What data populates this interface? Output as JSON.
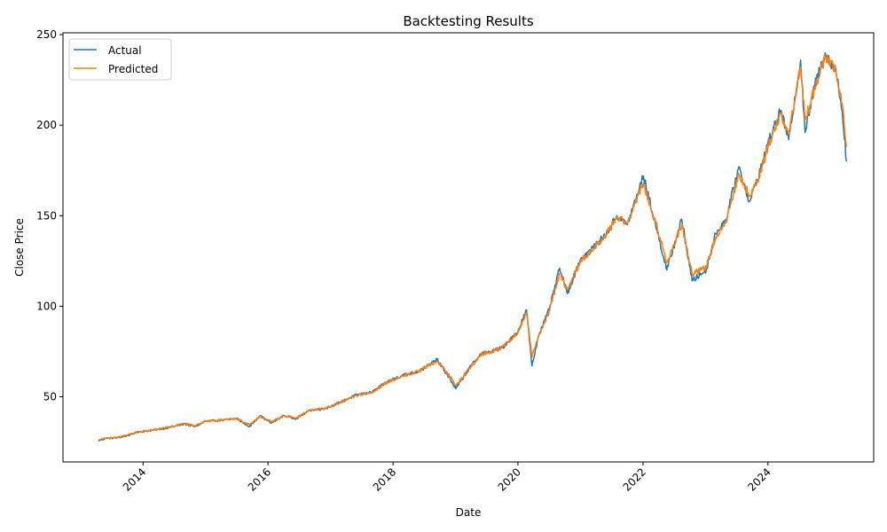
{
  "chart_data": {
    "type": "line",
    "title": "Backtesting Results",
    "xlabel": "Date",
    "ylabel": "Close Price",
    "xlim": [
      "2012-09-20",
      "2025-09-10"
    ],
    "ylim": [
      14,
      251
    ],
    "x_ticks": [
      "2014",
      "2016",
      "2018",
      "2020",
      "2022",
      "2024"
    ],
    "y_ticks": [
      50,
      100,
      150,
      200,
      250
    ],
    "grid": false,
    "legend": "top-left",
    "series": [
      {
        "name": "Actual",
        "color": "#1f77b4",
        "points": [
          [
            "2013-04-15",
            25.8
          ],
          [
            "2013-06-01",
            27.0
          ],
          [
            "2013-08-01",
            27.3
          ],
          [
            "2013-10-01",
            28.5
          ],
          [
            "2013-12-01",
            30.5
          ],
          [
            "2014-03-01",
            31.5
          ],
          [
            "2014-06-01",
            33.0
          ],
          [
            "2014-09-01",
            35.0
          ],
          [
            "2014-11-01",
            33.5
          ],
          [
            "2015-01-01",
            36.5
          ],
          [
            "2015-04-01",
            37.0
          ],
          [
            "2015-07-01",
            38.0
          ],
          [
            "2015-09-15",
            33.5
          ],
          [
            "2015-11-15",
            39.5
          ],
          [
            "2016-01-20",
            35.5
          ],
          [
            "2016-04-01",
            39.5
          ],
          [
            "2016-06-15",
            38.0
          ],
          [
            "2016-09-01",
            42.5
          ],
          [
            "2016-12-01",
            43.5
          ],
          [
            "2017-03-01",
            47.0
          ],
          [
            "2017-06-01",
            51.0
          ],
          [
            "2017-09-01",
            52.5
          ],
          [
            "2017-12-01",
            58.5
          ],
          [
            "2018-03-01",
            62.0
          ],
          [
            "2018-06-01",
            64.0
          ],
          [
            "2018-09-15",
            70.5
          ],
          [
            "2018-11-15",
            62.0
          ],
          [
            "2019-01-03",
            54.5
          ],
          [
            "2019-04-01",
            67.0
          ],
          [
            "2019-06-01",
            74.0
          ],
          [
            "2019-08-01",
            75.0
          ],
          [
            "2019-10-01",
            77.0
          ],
          [
            "2020-01-01",
            86.0
          ],
          [
            "2020-02-20",
            98.0
          ],
          [
            "2020-03-23",
            67.0
          ],
          [
            "2020-05-01",
            84.0
          ],
          [
            "2020-07-01",
            98.0
          ],
          [
            "2020-09-01",
            121.0
          ],
          [
            "2020-10-15",
            107.0
          ],
          [
            "2021-01-01",
            126.0
          ],
          [
            "2021-03-15",
            132.0
          ],
          [
            "2021-06-01",
            140.0
          ],
          [
            "2021-08-01",
            150.0
          ],
          [
            "2021-10-01",
            145.0
          ],
          [
            "2022-01-03",
            172.0
          ],
          [
            "2022-03-15",
            145.0
          ],
          [
            "2022-05-20",
            120.0
          ],
          [
            "2022-08-15",
            148.0
          ],
          [
            "2022-10-15",
            114.0
          ],
          [
            "2023-01-05",
            120.0
          ],
          [
            "2023-03-01",
            140.0
          ],
          [
            "2023-05-01",
            148.0
          ],
          [
            "2023-07-15",
            177.0
          ],
          [
            "2023-09-15",
            158.0
          ],
          [
            "2023-11-01",
            170.0
          ],
          [
            "2024-01-01",
            190.0
          ],
          [
            "2024-03-15",
            208.0
          ],
          [
            "2024-05-01",
            192.0
          ],
          [
            "2024-07-10",
            236.0
          ],
          [
            "2024-08-05",
            196.0
          ],
          [
            "2024-10-01",
            222.0
          ],
          [
            "2024-12-01",
            240.0
          ],
          [
            "2025-02-01",
            230.0
          ],
          [
            "2025-03-10",
            208.0
          ],
          [
            "2025-04-04",
            180.0
          ]
        ]
      },
      {
        "name": "Predicted",
        "color": "#ff7f0e",
        "points": [
          [
            "2013-04-15",
            26.3
          ],
          [
            "2013-06-01",
            27.2
          ],
          [
            "2013-08-01",
            27.6
          ],
          [
            "2013-10-01",
            28.8
          ],
          [
            "2013-12-01",
            30.7
          ],
          [
            "2014-03-01",
            31.8
          ],
          [
            "2014-06-01",
            33.3
          ],
          [
            "2014-09-01",
            35.2
          ],
          [
            "2014-11-01",
            34.0
          ],
          [
            "2015-01-01",
            36.6
          ],
          [
            "2015-04-01",
            37.2
          ],
          [
            "2015-07-01",
            38.1
          ],
          [
            "2015-09-15",
            34.5
          ],
          [
            "2015-11-15",
            39.2
          ],
          [
            "2016-01-20",
            36.2
          ],
          [
            "2016-04-01",
            39.3
          ],
          [
            "2016-06-15",
            38.4
          ],
          [
            "2016-09-01",
            42.4
          ],
          [
            "2016-12-01",
            43.6
          ],
          [
            "2017-03-01",
            46.8
          ],
          [
            "2017-06-01",
            50.7
          ],
          [
            "2017-09-01",
            52.6
          ],
          [
            "2017-12-01",
            58.2
          ],
          [
            "2018-03-01",
            61.5
          ],
          [
            "2018-06-01",
            64.2
          ],
          [
            "2018-09-15",
            69.8
          ],
          [
            "2018-11-15",
            63.0
          ],
          [
            "2019-01-03",
            56.5
          ],
          [
            "2019-04-01",
            66.5
          ],
          [
            "2019-06-01",
            73.5
          ],
          [
            "2019-08-01",
            75.2
          ],
          [
            "2019-10-01",
            77.3
          ],
          [
            "2020-01-01",
            85.5
          ],
          [
            "2020-02-20",
            96.5
          ],
          [
            "2020-03-23",
            72.0
          ],
          [
            "2020-05-01",
            83.5
          ],
          [
            "2020-07-01",
            97.0
          ],
          [
            "2020-09-01",
            118.0
          ],
          [
            "2020-10-15",
            109.0
          ],
          [
            "2021-01-01",
            125.0
          ],
          [
            "2021-03-15",
            131.0
          ],
          [
            "2021-06-01",
            139.5
          ],
          [
            "2021-08-01",
            149.0
          ],
          [
            "2021-10-01",
            146.0
          ],
          [
            "2022-01-03",
            168.0
          ],
          [
            "2022-03-15",
            147.0
          ],
          [
            "2022-05-20",
            124.0
          ],
          [
            "2022-08-15",
            145.0
          ],
          [
            "2022-10-15",
            118.0
          ],
          [
            "2023-01-05",
            121.5
          ],
          [
            "2023-03-01",
            138.0
          ],
          [
            "2023-05-01",
            147.0
          ],
          [
            "2023-07-15",
            173.0
          ],
          [
            "2023-09-15",
            161.0
          ],
          [
            "2023-11-01",
            169.0
          ],
          [
            "2024-01-01",
            188.0
          ],
          [
            "2024-03-15",
            206.0
          ],
          [
            "2024-05-01",
            195.0
          ],
          [
            "2024-07-10",
            232.0
          ],
          [
            "2024-08-05",
            203.0
          ],
          [
            "2024-10-01",
            221.0
          ],
          [
            "2024-12-01",
            237.0
          ],
          [
            "2025-02-01",
            231.0
          ],
          [
            "2025-03-10",
            212.0
          ],
          [
            "2025-04-04",
            188.0
          ]
        ]
      }
    ]
  }
}
